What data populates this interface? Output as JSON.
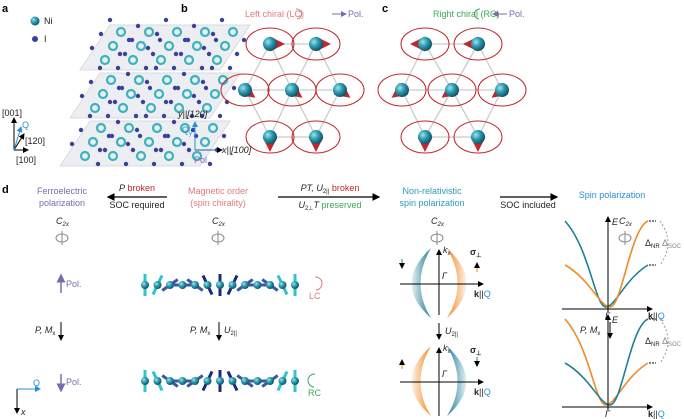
{
  "panels": {
    "a": {
      "label": "a",
      "legend": [
        {
          "name": "Ni",
          "color": "#3bb3c0"
        },
        {
          "name": "I",
          "color": "#3a3f9e"
        }
      ],
      "axes": {
        "c": "[001]",
        "q": "Q",
        "b": "[120]",
        "a": "[100]"
      }
    },
    "b": {
      "label": "b",
      "title": "Left chiral (LC)",
      "pol": "Pol.",
      "axes": {
        "y": "y||[120]",
        "qy": "Q",
        "qy_sub": "y",
        "x": "x||[100]",
        "pol": "Pol."
      }
    },
    "c": {
      "label": "c",
      "title": "Right chiral (RC)",
      "pol": "Pol."
    },
    "d": {
      "label": "d",
      "ferro": [
        "Ferroelectric",
        "polarization"
      ],
      "arrow1": {
        "top_sym": "P",
        "top_word": " broken",
        "bottom": "SOC required"
      },
      "magnetic": [
        "Magnetic order",
        "(spin chirality)"
      ],
      "arrow2": {
        "top_sym": "PT, U",
        "top_sub": "2||",
        "top_word": " broken",
        "bottom_sym": "U",
        "bottom_sub": "2⊥",
        "bottom_sym2": "T",
        "bottom_word": " preserved"
      },
      "nonrel": [
        "Non-relativistic",
        "spin polarization"
      ],
      "arrow3": {
        "bottom": "SOC included"
      },
      "spinpol": "Spin polarization",
      "c2x": "C",
      "c2x_sub": "2x",
      "pol": "Pol.",
      "lc": "LC",
      "rc": "RC",
      "pmx": "P, M",
      "pmx_sub": "x",
      "u2": "U",
      "u2_sub": "2||",
      "q": "Q",
      "x": "x",
      "kx": "k",
      "kx_sub": "x",
      "sigma": "σ",
      "sigma_sub": "⊥",
      "gamma": "Γ",
      "kq_bold": "k",
      "kq_rest": "||",
      "kq_q": "Q",
      "E": "E",
      "dnr": "Δ",
      "dnr_sub": "NR",
      "dsoc": "Δ",
      "dsoc_sub": "SOC"
    }
  },
  "colors": {
    "teal": "#1f7f96",
    "orange": "#f08a24",
    "ni": "#3bb3c0",
    "iodine": "#3a3f9e",
    "red": "#c0272d"
  }
}
